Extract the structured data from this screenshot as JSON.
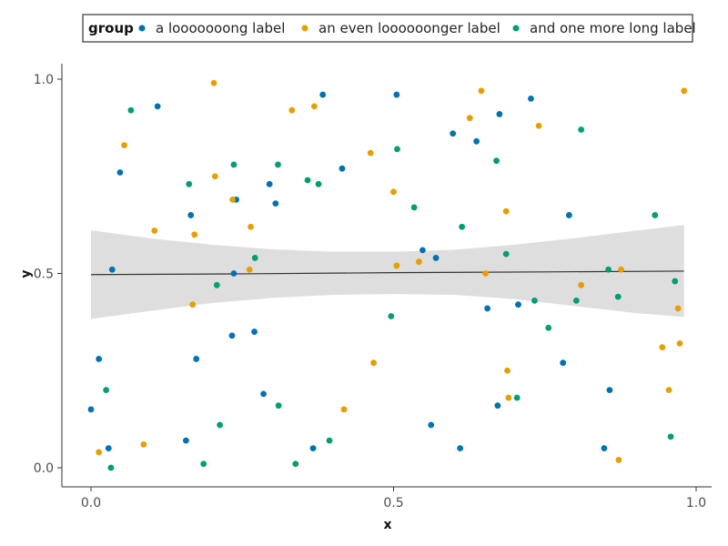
{
  "chart_data": {
    "type": "scatter",
    "xlabel": "x",
    "ylabel": "y",
    "xlim": [
      -0.02,
      1.02
    ],
    "ylim": [
      -0.05,
      1.05
    ],
    "x_ticks": [
      0.0,
      0.5,
      1.0
    ],
    "x_tick_labels": [
      "0.0",
      "0.5",
      "1.0"
    ],
    "y_ticks": [
      0.0,
      0.5,
      1.0
    ],
    "y_tick_labels": [
      "0.0",
      "0.5",
      "1.0"
    ],
    "grid": false,
    "legend": {
      "title": "group",
      "placement": "top-center",
      "entries": [
        "a looooooong label",
        "an even loooooonger label",
        "and one more long label"
      ]
    },
    "series": [
      {
        "name": "a looooooong label",
        "color": "#0072B2",
        "points": [
          [
            0.0,
            0.15
          ],
          [
            0.013,
            0.28
          ],
          [
            0.029,
            0.05
          ],
          [
            0.035,
            0.51
          ],
          [
            0.048,
            0.76
          ],
          [
            0.11,
            0.93
          ],
          [
            0.157,
            0.07
          ],
          [
            0.165,
            0.65
          ],
          [
            0.174,
            0.28
          ],
          [
            0.233,
            0.34
          ],
          [
            0.236,
            0.5
          ],
          [
            0.24,
            0.69
          ],
          [
            0.27,
            0.35
          ],
          [
            0.285,
            0.19
          ],
          [
            0.295,
            0.73
          ],
          [
            0.305,
            0.68
          ],
          [
            0.367,
            0.05
          ],
          [
            0.383,
            0.96
          ],
          [
            0.415,
            0.77
          ],
          [
            0.505,
            0.96
          ],
          [
            0.548,
            0.56
          ],
          [
            0.562,
            0.11
          ],
          [
            0.57,
            0.54
          ],
          [
            0.598,
            0.86
          ],
          [
            0.61,
            0.05
          ],
          [
            0.637,
            0.84
          ],
          [
            0.655,
            0.41
          ],
          [
            0.672,
            0.16
          ],
          [
            0.675,
            0.91
          ],
          [
            0.706,
            0.42
          ],
          [
            0.727,
            0.95
          ],
          [
            0.78,
            0.27
          ],
          [
            0.79,
            0.65
          ],
          [
            0.848,
            0.05
          ],
          [
            0.857,
            0.2
          ]
        ]
      },
      {
        "name": "an even loooooonger label",
        "color": "#E69F00",
        "points": [
          [
            0.013,
            0.04
          ],
          [
            0.055,
            0.83
          ],
          [
            0.087,
            0.06
          ],
          [
            0.105,
            0.61
          ],
          [
            0.168,
            0.42
          ],
          [
            0.171,
            0.6
          ],
          [
            0.203,
            0.99
          ],
          [
            0.205,
            0.75
          ],
          [
            0.234,
            0.69
          ],
          [
            0.262,
            0.51
          ],
          [
            0.264,
            0.62
          ],
          [
            0.332,
            0.92
          ],
          [
            0.369,
            0.93
          ],
          [
            0.418,
            0.15
          ],
          [
            0.462,
            0.81
          ],
          [
            0.467,
            0.27
          ],
          [
            0.5,
            0.71
          ],
          [
            0.505,
            0.52
          ],
          [
            0.542,
            0.53
          ],
          [
            0.626,
            0.9
          ],
          [
            0.645,
            0.97
          ],
          [
            0.652,
            0.5
          ],
          [
            0.686,
            0.66
          ],
          [
            0.688,
            0.25
          ],
          [
            0.69,
            0.18
          ],
          [
            0.74,
            0.88
          ],
          [
            0.81,
            0.47
          ],
          [
            0.872,
            0.02
          ],
          [
            0.876,
            0.51
          ],
          [
            0.944,
            0.31
          ],
          [
            0.955,
            0.2
          ],
          [
            0.97,
            0.41
          ],
          [
            0.973,
            0.32
          ],
          [
            0.98,
            0.97
          ]
        ]
      },
      {
        "name": "and one more long label",
        "color": "#009E73",
        "points": [
          [
            0.025,
            0.2
          ],
          [
            0.033,
            0.0
          ],
          [
            0.066,
            0.92
          ],
          [
            0.162,
            0.73
          ],
          [
            0.186,
            0.01
          ],
          [
            0.208,
            0.47
          ],
          [
            0.213,
            0.11
          ],
          [
            0.236,
            0.78
          ],
          [
            0.271,
            0.54
          ],
          [
            0.309,
            0.78
          ],
          [
            0.31,
            0.16
          ],
          [
            0.338,
            0.01
          ],
          [
            0.358,
            0.74
          ],
          [
            0.376,
            0.73
          ],
          [
            0.394,
            0.07
          ],
          [
            0.496,
            0.39
          ],
          [
            0.506,
            0.82
          ],
          [
            0.534,
            0.67
          ],
          [
            0.613,
            0.62
          ],
          [
            0.67,
            0.79
          ],
          [
            0.686,
            0.55
          ],
          [
            0.704,
            0.18
          ],
          [
            0.733,
            0.43
          ],
          [
            0.756,
            0.36
          ],
          [
            0.802,
            0.43
          ],
          [
            0.81,
            0.87
          ],
          [
            0.855,
            0.51
          ],
          [
            0.871,
            0.44
          ],
          [
            0.932,
            0.65
          ],
          [
            0.958,
            0.08
          ],
          [
            0.965,
            0.48
          ]
        ]
      }
    ],
    "smooth": {
      "color": "#333333",
      "band_color": "#dedede",
      "line": [
        [
          0.0,
          0.497
        ],
        [
          0.25,
          0.499
        ],
        [
          0.5,
          0.502
        ],
        [
          0.75,
          0.504
        ],
        [
          0.98,
          0.506
        ]
      ],
      "upper": [
        [
          0.0,
          0.611
        ],
        [
          0.1,
          0.59
        ],
        [
          0.2,
          0.574
        ],
        [
          0.3,
          0.562
        ],
        [
          0.4,
          0.556
        ],
        [
          0.5,
          0.556
        ],
        [
          0.6,
          0.561
        ],
        [
          0.7,
          0.574
        ],
        [
          0.8,
          0.591
        ],
        [
          0.9,
          0.61
        ],
        [
          0.98,
          0.625
        ]
      ],
      "lower": [
        [
          0.0,
          0.383
        ],
        [
          0.1,
          0.404
        ],
        [
          0.2,
          0.424
        ],
        [
          0.3,
          0.437
        ],
        [
          0.4,
          0.445
        ],
        [
          0.5,
          0.447
        ],
        [
          0.6,
          0.445
        ],
        [
          0.7,
          0.434
        ],
        [
          0.8,
          0.416
        ],
        [
          0.9,
          0.398
        ],
        [
          0.98,
          0.388
        ]
      ]
    }
  }
}
